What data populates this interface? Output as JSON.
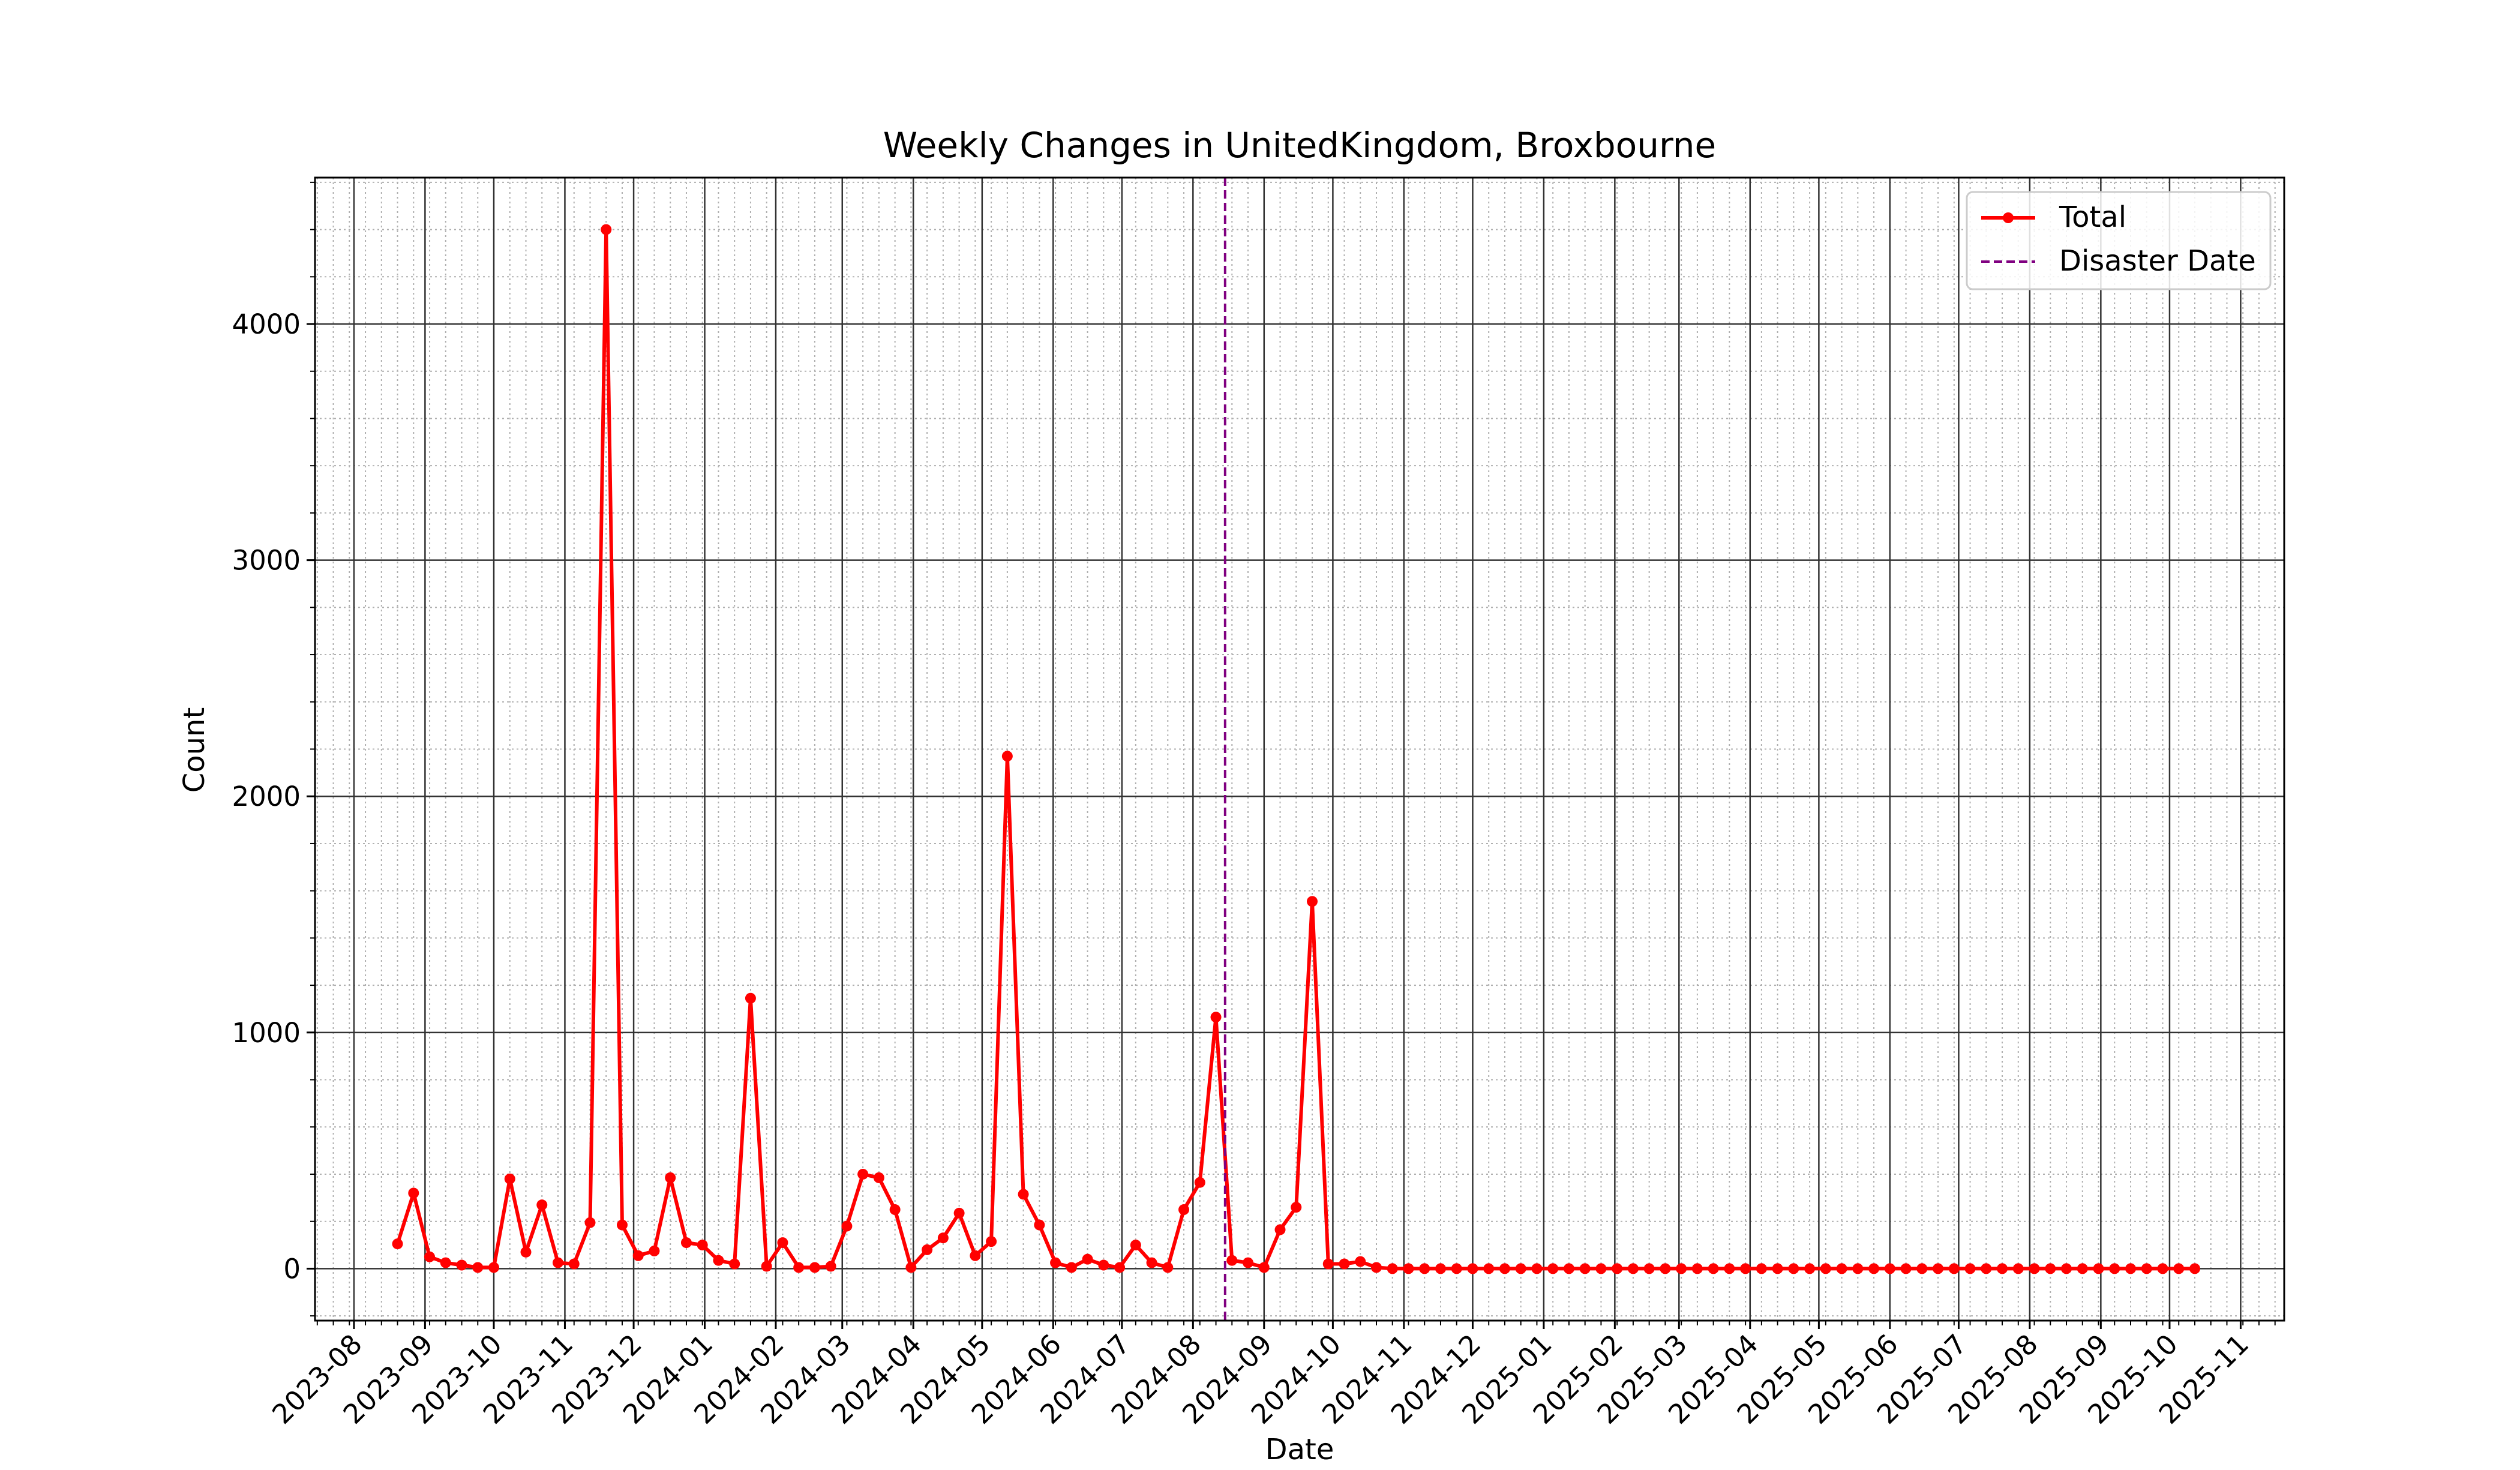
{
  "chart_data": {
    "type": "line",
    "title": "Weekly Changes in UnitedKingdom, Broxbourne",
    "xlabel": "Date",
    "ylabel": "Count",
    "xlim": [
      "2023-07-15",
      "2025-11-20"
    ],
    "ylim": [
      -220,
      4620
    ],
    "x_ticks": [
      "2023-08",
      "2023-09",
      "2023-10",
      "2023-11",
      "2023-12",
      "2024-01",
      "2024-02",
      "2024-03",
      "2024-04",
      "2024-05",
      "2024-06",
      "2024-07",
      "2024-08",
      "2024-09",
      "2024-10",
      "2024-11",
      "2024-12",
      "2025-01",
      "2025-02",
      "2025-03",
      "2025-04",
      "2025-05",
      "2025-06",
      "2025-07",
      "2025-08",
      "2025-09",
      "2025-10",
      "2025-11"
    ],
    "y_ticks": [
      0,
      1000,
      2000,
      3000,
      4000
    ],
    "grid": {
      "major": true,
      "minor": true
    },
    "legend": {
      "location": "upper right",
      "entries": [
        "Total",
        "Disaster Date"
      ]
    },
    "series": [
      {
        "name": "Total",
        "color": "#ff0000",
        "marker": "circle",
        "x": [
          "2023-08-20",
          "2023-08-27",
          "2023-09-03",
          "2023-09-10",
          "2023-09-17",
          "2023-09-24",
          "2023-10-01",
          "2023-10-08",
          "2023-10-15",
          "2023-10-22",
          "2023-10-29",
          "2023-11-05",
          "2023-11-12",
          "2023-11-19",
          "2023-11-26",
          "2023-12-03",
          "2023-12-10",
          "2023-12-17",
          "2023-12-24",
          "2023-12-31",
          "2024-01-07",
          "2024-01-14",
          "2024-01-21",
          "2024-01-28",
          "2024-02-04",
          "2024-02-11",
          "2024-02-18",
          "2024-02-25",
          "2024-03-03",
          "2024-03-10",
          "2024-03-17",
          "2024-03-24",
          "2024-03-31",
          "2024-04-07",
          "2024-04-14",
          "2024-04-21",
          "2024-04-28",
          "2024-05-05",
          "2024-05-12",
          "2024-05-19",
          "2024-05-26",
          "2024-06-02",
          "2024-06-09",
          "2024-06-16",
          "2024-06-23",
          "2024-06-30",
          "2024-07-07",
          "2024-07-14",
          "2024-07-21",
          "2024-07-28",
          "2024-08-04",
          "2024-08-11",
          "2024-08-18",
          "2024-08-25",
          "2024-09-01",
          "2024-09-08",
          "2024-09-15",
          "2024-09-22",
          "2024-09-29",
          "2024-10-06",
          "2024-10-13",
          "2024-10-20",
          "2024-10-27",
          "2024-11-03",
          "2024-11-10",
          "2024-11-17",
          "2024-11-24",
          "2024-12-01",
          "2024-12-08",
          "2024-12-15",
          "2024-12-22",
          "2024-12-29",
          "2025-01-05",
          "2025-01-12",
          "2025-01-19",
          "2025-01-26",
          "2025-02-02",
          "2025-02-09",
          "2025-02-16",
          "2025-02-23",
          "2025-03-02",
          "2025-03-09",
          "2025-03-16",
          "2025-03-23",
          "2025-03-30",
          "2025-04-06",
          "2025-04-13",
          "2025-04-20",
          "2025-04-27",
          "2025-05-04",
          "2025-05-11",
          "2025-05-18",
          "2025-05-25",
          "2025-06-01",
          "2025-06-08",
          "2025-06-15",
          "2025-06-22",
          "2025-06-29",
          "2025-07-06",
          "2025-07-13",
          "2025-07-20",
          "2025-07-27",
          "2025-08-03",
          "2025-08-10",
          "2025-08-17",
          "2025-08-24",
          "2025-08-31",
          "2025-09-07",
          "2025-09-14",
          "2025-09-21",
          "2025-09-28",
          "2025-10-05",
          "2025-10-12"
        ],
        "y": [
          105,
          320,
          50,
          25,
          15,
          5,
          5,
          380,
          70,
          270,
          25,
          20,
          195,
          4400,
          185,
          55,
          75,
          385,
          110,
          100,
          35,
          20,
          1145,
          10,
          110,
          5,
          5,
          10,
          180,
          400,
          385,
          250,
          5,
          80,
          130,
          235,
          55,
          115,
          2170,
          315,
          185,
          25,
          5,
          40,
          15,
          5,
          100,
          25,
          5,
          250,
          365,
          1065,
          35,
          25,
          5,
          165,
          260,
          1555,
          20,
          20,
          30,
          5,
          0,
          0,
          0,
          0,
          0,
          0,
          0,
          0,
          0,
          0,
          0,
          0,
          0,
          0,
          0,
          0,
          0,
          0,
          0,
          0,
          0,
          0,
          0,
          0,
          0,
          0,
          0,
          0,
          0,
          0,
          0,
          0,
          0,
          0,
          0,
          0,
          0,
          0,
          0,
          0,
          0,
          0,
          0,
          0,
          0,
          0,
          0,
          0,
          0,
          0,
          0
        ]
      },
      {
        "name": "Disaster Date",
        "color": "#800080",
        "line_style": "dashed",
        "type": "vertical_line",
        "x": "2024-08-15"
      }
    ]
  }
}
